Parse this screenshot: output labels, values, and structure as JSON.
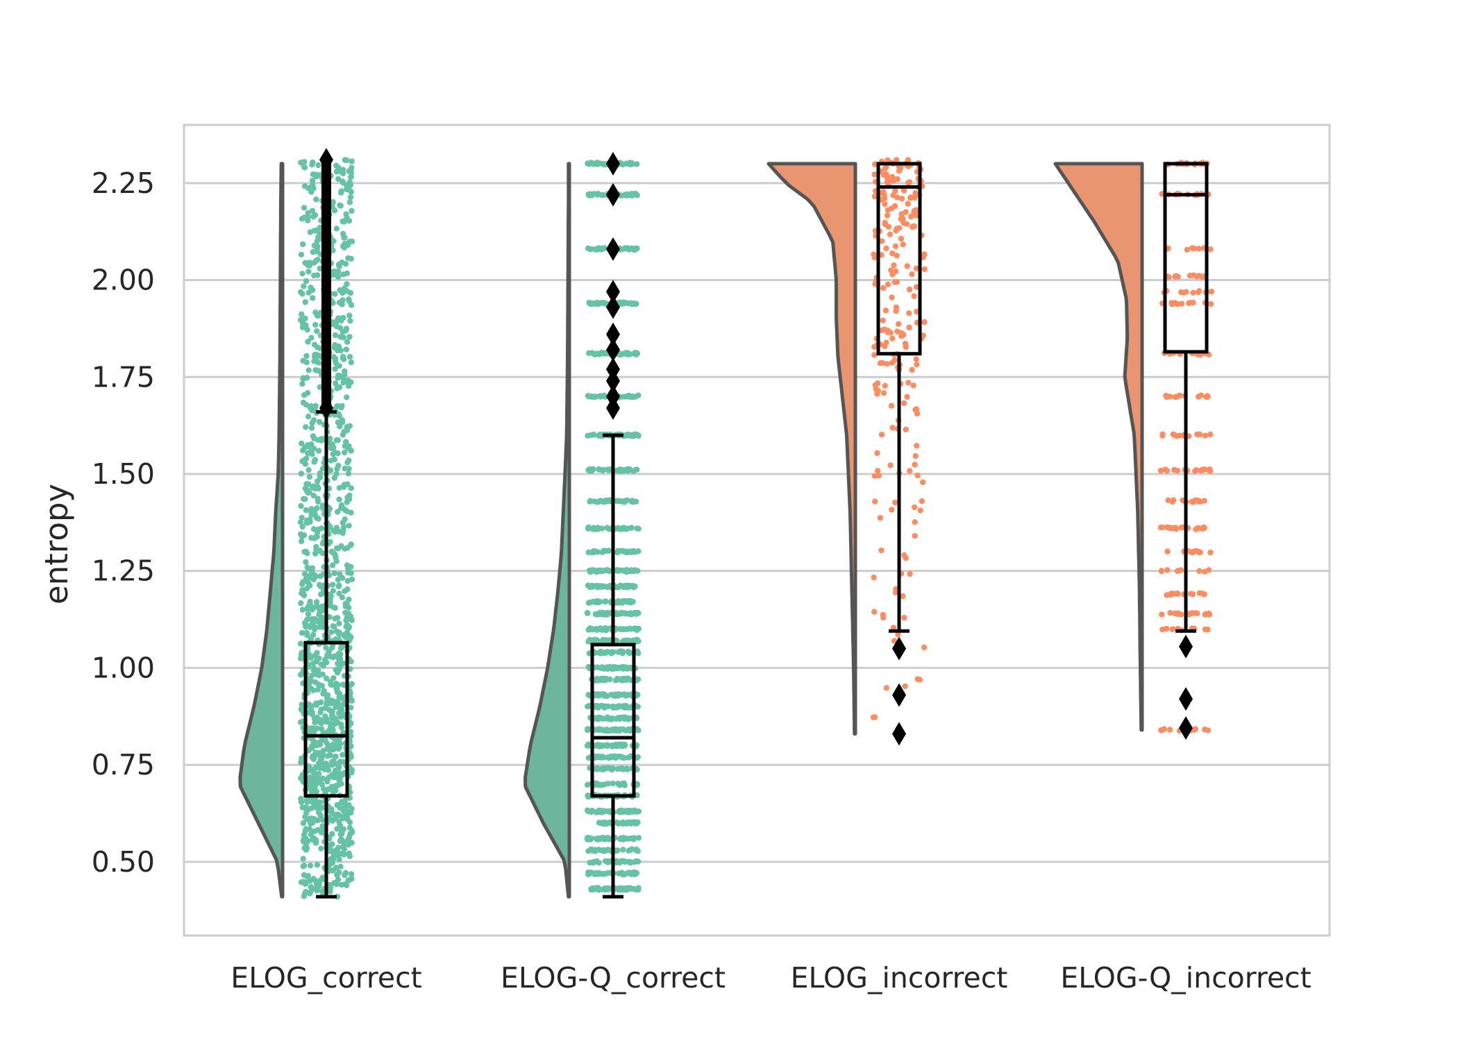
{
  "chart_data": {
    "type": "raincloud",
    "title": "",
    "xlabel": "",
    "ylabel": "entropy",
    "ylim": [
      0.31,
      2.4
    ],
    "yticks": [
      0.5,
      0.75,
      1.0,
      1.25,
      1.5,
      1.75,
      2.0,
      2.25
    ],
    "ytick_labels": [
      "0.50",
      "0.75",
      "1.00",
      "1.25",
      "1.50",
      "1.75",
      "2.00",
      "2.25"
    ],
    "grid": true,
    "categories": [
      "ELOG_correct",
      "ELOG-Q_correct",
      "ELOG_incorrect",
      "ELOG-Q_incorrect"
    ],
    "colors": {
      "correct_points": "#66c2a5",
      "correct_violin": "#6db59c",
      "incorrect_points": "#fc8d62",
      "incorrect_violin": "#e9956f",
      "grid": "#cccccc",
      "frame": "#cccccc",
      "box_stroke": "#000000",
      "violin_stroke": "#555555"
    },
    "series": [
      {
        "category": "ELOG_correct",
        "group": "correct",
        "box": {
          "whisker_low": 0.41,
          "q1": 0.67,
          "median": 0.825,
          "q3": 1.065,
          "whisker_high": 1.66
        },
        "outliers": {
          "min": 1.67,
          "max": 2.31,
          "dense": true
        },
        "density": [
          [
            0.41,
            0.01
          ],
          [
            0.5,
            0.06
          ],
          [
            0.6,
            0.28
          ],
          [
            0.7,
            0.5
          ],
          [
            0.8,
            0.44
          ],
          [
            0.9,
            0.33
          ],
          [
            1.0,
            0.24
          ],
          [
            1.1,
            0.18
          ],
          [
            1.2,
            0.14
          ],
          [
            1.3,
            0.1
          ],
          [
            1.4,
            0.08
          ],
          [
            1.5,
            0.05
          ],
          [
            1.6,
            0.04
          ],
          [
            1.8,
            0.03
          ],
          [
            2.0,
            0.025
          ],
          [
            2.2,
            0.02
          ],
          [
            2.3,
            0.015
          ]
        ],
        "points": {
          "min": 0.41,
          "max": 2.31,
          "count": 1400,
          "levels": "continuous"
        }
      },
      {
        "category": "ELOG-Q_correct",
        "group": "correct",
        "box": {
          "whisker_low": 0.41,
          "q1": 0.67,
          "median": 0.82,
          "q3": 1.06,
          "whisker_high": 1.6
        },
        "outliers": {
          "values": [
            1.67,
            1.7,
            1.74,
            1.77,
            1.82,
            1.86,
            1.93,
            1.97,
            2.08,
            2.22,
            2.3
          ]
        },
        "density": [
          [
            0.41,
            0.01
          ],
          [
            0.5,
            0.05
          ],
          [
            0.6,
            0.3
          ],
          [
            0.7,
            0.52
          ],
          [
            0.8,
            0.45
          ],
          [
            0.9,
            0.34
          ],
          [
            1.0,
            0.25
          ],
          [
            1.1,
            0.18
          ],
          [
            1.2,
            0.13
          ],
          [
            1.3,
            0.09
          ],
          [
            1.4,
            0.07
          ],
          [
            1.5,
            0.05
          ],
          [
            1.6,
            0.03
          ],
          [
            1.8,
            0.02
          ],
          [
            2.0,
            0.015
          ],
          [
            2.2,
            0.01
          ],
          [
            2.3,
            0.01
          ]
        ],
        "points": {
          "min": 0.41,
          "max": 2.31,
          "count": 1400,
          "levels": [
            0.43,
            0.47,
            0.5,
            0.53,
            0.56,
            0.6,
            0.63,
            0.67,
            0.7,
            0.74,
            0.77,
            0.8,
            0.84,
            0.87,
            0.9,
            0.93,
            0.97,
            1.0,
            1.04,
            1.07,
            1.1,
            1.14,
            1.17,
            1.21,
            1.25,
            1.3,
            1.36,
            1.43,
            1.51,
            1.6,
            1.7,
            1.81,
            1.94,
            2.08,
            2.22,
            2.3
          ]
        }
      },
      {
        "category": "ELOG_incorrect",
        "group": "incorrect",
        "box": {
          "whisker_low": 1.095,
          "q1": 1.81,
          "median": 2.24,
          "q3": 2.3,
          "whisker_high": 2.3
        },
        "outliers": {
          "values": [
            0.83,
            0.93,
            1.05
          ]
        },
        "density": [
          [
            0.83,
            0.01
          ],
          [
            1.0,
            0.02
          ],
          [
            1.2,
            0.04
          ],
          [
            1.4,
            0.06
          ],
          [
            1.6,
            0.1
          ],
          [
            1.8,
            0.2
          ],
          [
            1.9,
            0.22
          ],
          [
            2.0,
            0.22
          ],
          [
            2.1,
            0.26
          ],
          [
            2.2,
            0.5
          ],
          [
            2.25,
            0.8
          ],
          [
            2.3,
            1.0
          ]
        ],
        "points": {
          "min": 0.83,
          "max": 2.31,
          "count": 240,
          "levels": "continuous"
        }
      },
      {
        "category": "ELOG-Q_incorrect",
        "group": "incorrect",
        "box": {
          "whisker_low": 1.095,
          "q1": 1.815,
          "median": 2.22,
          "q3": 2.3,
          "whisker_high": 2.3
        },
        "outliers": {
          "values": [
            0.845,
            0.92,
            1.055
          ]
        },
        "density": [
          [
            0.84,
            0.01
          ],
          [
            1.0,
            0.02
          ],
          [
            1.2,
            0.03
          ],
          [
            1.4,
            0.05
          ],
          [
            1.6,
            0.09
          ],
          [
            1.75,
            0.2
          ],
          [
            1.85,
            0.17
          ],
          [
            1.95,
            0.18
          ],
          [
            2.05,
            0.28
          ],
          [
            2.15,
            0.55
          ],
          [
            2.25,
            0.85
          ],
          [
            2.3,
            1.0
          ]
        ],
        "points": {
          "min": 0.84,
          "max": 2.31,
          "count": 240,
          "levels": [
            0.84,
            1.1,
            1.14,
            1.19,
            1.25,
            1.3,
            1.36,
            1.43,
            1.51,
            1.6,
            1.7,
            1.81,
            1.94,
            1.97,
            2.01,
            2.08,
            2.22,
            2.3
          ]
        }
      }
    ]
  }
}
